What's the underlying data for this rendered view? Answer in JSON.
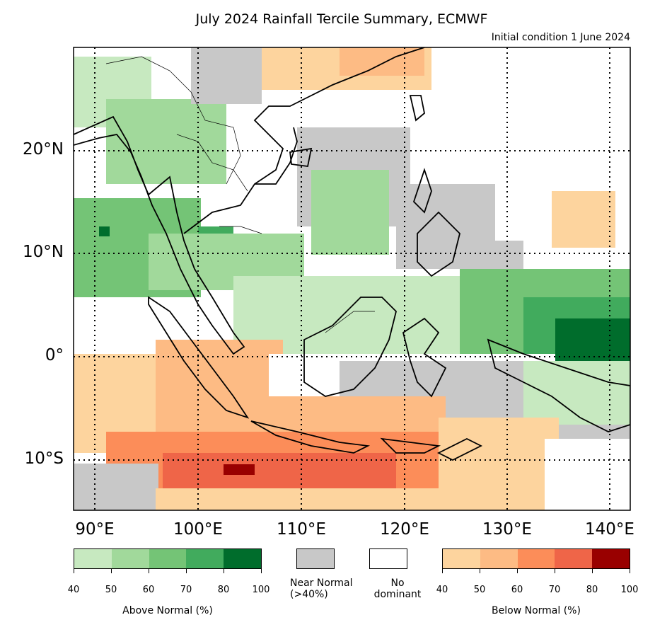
{
  "title": "July 2024 Rainfall Tercile Summary, ECMWF",
  "subtitle": "Initial condition 1 June 2024",
  "map": {
    "lon_range": [
      88,
      142
    ],
    "lat_range": [
      -15,
      30
    ],
    "lat_labels": [
      "20°N",
      "10°N",
      "0°",
      "10°S"
    ],
    "lon_labels": [
      "90°E",
      "100°E",
      "110°E",
      "120°E",
      "130°E",
      "140°E"
    ],
    "gridline_style": "dotted",
    "land_outline": "black coastlines and borders"
  },
  "legend": {
    "above_normal": {
      "label": "Above Normal (%)",
      "ticks": [
        "40",
        "50",
        "60",
        "70",
        "80",
        "100"
      ],
      "colors": [
        "#c7e9c0",
        "#a1d99b",
        "#74c476",
        "#41ab5d",
        "#006d2c"
      ]
    },
    "near_normal": {
      "label": "Near Normal\n(>40%)",
      "color": "#c8c8c8"
    },
    "no_dominant": {
      "label": "No\ndominant",
      "color": "#ffffff"
    },
    "below_normal": {
      "label": "Below Normal (%)",
      "ticks": [
        "40",
        "50",
        "60",
        "70",
        "80",
        "100"
      ],
      "colors": [
        "#fdd49e",
        "#fdbb84",
        "#fc8d59",
        "#ef6548",
        "#990000"
      ]
    }
  }
}
